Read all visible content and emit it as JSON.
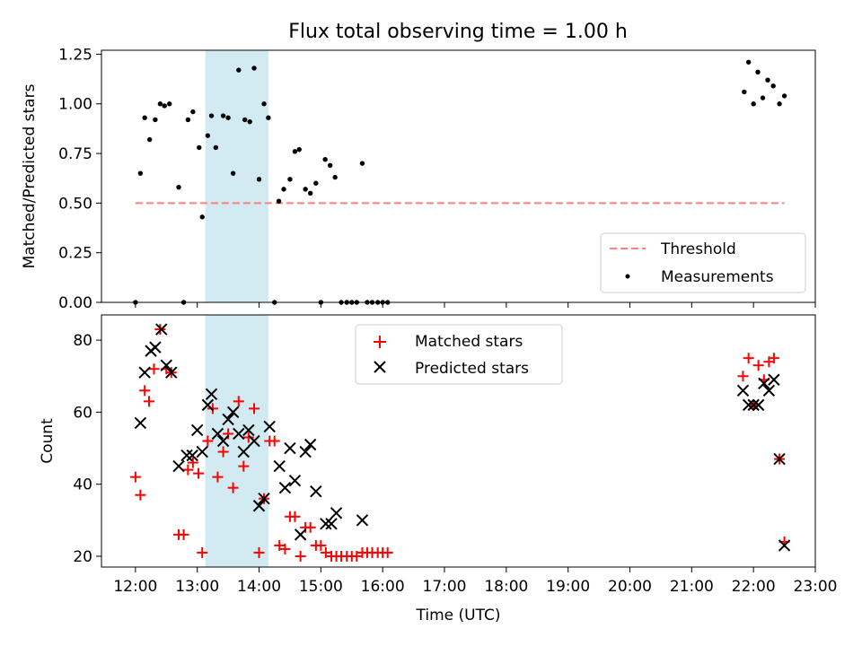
{
  "title": "Flux total observing time = 1.00 h",
  "chart_data": [
    {
      "type": "scatter",
      "ylabel": "Matched/Predicted stars",
      "xlim_hours": [
        11.45,
        23.0
      ],
      "ylim": [
        0,
        1.27
      ],
      "yticks": [
        0,
        0.25,
        0.5,
        0.75,
        1.0,
        1.25
      ],
      "ytick_labels": [
        "0.00",
        "0.25",
        "0.50",
        "0.75",
        "1.00",
        "1.25"
      ],
      "threshold": {
        "name": "Threshold",
        "y": 0.5,
        "x_range": [
          12.0,
          22.5
        ],
        "color": "#ff7f7f"
      },
      "highlight_band": {
        "x_range": [
          13.13,
          14.15
        ],
        "color": "#add8e6"
      },
      "legend": {
        "position": "lower right",
        "entries": [
          "Threshold",
          "Measurements"
        ]
      },
      "series": [
        {
          "name": "Measurements",
          "color": "#000000",
          "marker": "dot",
          "x": [
            12.0,
            12.08,
            12.15,
            12.23,
            12.32,
            12.4,
            12.47,
            12.55,
            12.7,
            12.78,
            12.85,
            12.93,
            13.03,
            13.08,
            13.17,
            13.23,
            13.3,
            13.42,
            13.5,
            13.58,
            13.67,
            13.77,
            13.85,
            13.92,
            14.0,
            14.08,
            14.15,
            14.25,
            14.32,
            14.4,
            14.5,
            14.58,
            14.65,
            14.75,
            14.83,
            14.92,
            15.0,
            15.07,
            15.15,
            15.23,
            15.33,
            15.42,
            15.5,
            15.58,
            15.67,
            15.75,
            15.83,
            15.92,
            16.0,
            16.08,
            21.85,
            21.92,
            22.0,
            22.07,
            22.15,
            22.23,
            22.32,
            22.42,
            22.5
          ],
          "y": [
            0.0,
            0.65,
            0.93,
            0.82,
            0.92,
            1.0,
            0.99,
            1.0,
            0.58,
            0.0,
            0.92,
            0.96,
            0.78,
            0.43,
            0.84,
            0.94,
            0.78,
            0.94,
            0.93,
            0.65,
            1.17,
            0.92,
            0.91,
            1.18,
            0.62,
            1.0,
            0.93,
            0.0,
            0.51,
            0.57,
            0.62,
            0.76,
            0.77,
            0.57,
            0.55,
            0.6,
            0.0,
            0.72,
            0.69,
            0.63,
            0.0,
            0.0,
            0.0,
            0.0,
            0.7,
            0.0,
            0.0,
            0.0,
            0.0,
            0.0,
            1.06,
            1.21,
            1.0,
            1.16,
            1.03,
            1.12,
            1.09,
            1.0,
            1.04
          ]
        }
      ]
    },
    {
      "type": "scatter",
      "xlabel": "Time (UTC)",
      "ylabel": "Count",
      "xlim_hours": [
        11.45,
        23.0
      ],
      "ylim": [
        17,
        87
      ],
      "yticks": [
        20,
        40,
        60,
        80
      ],
      "ytick_labels": [
        "20",
        "40",
        "60",
        "80"
      ],
      "xticks_hours": [
        12,
        13,
        14,
        15,
        16,
        17,
        18,
        19,
        20,
        21,
        22,
        23
      ],
      "xtick_labels": [
        "12:00",
        "13:00",
        "14:00",
        "15:00",
        "16:00",
        "17:00",
        "18:00",
        "19:00",
        "20:00",
        "21:00",
        "22:00",
        "23:00"
      ],
      "highlight_band": {
        "x_range": [
          13.13,
          14.15
        ],
        "color": "#add8e6"
      },
      "legend": {
        "position": "upper center",
        "entries": [
          "Matched stars",
          "Predicted stars"
        ]
      },
      "series": [
        {
          "name": "Matched stars",
          "color": "#ff0000",
          "marker": "plus",
          "x": [
            12.0,
            12.08,
            12.15,
            12.22,
            12.3,
            12.4,
            12.5,
            12.58,
            12.7,
            12.78,
            12.85,
            12.93,
            13.02,
            13.08,
            13.17,
            13.25,
            13.33,
            13.42,
            13.5,
            13.58,
            13.67,
            13.75,
            13.83,
            13.92,
            14.0,
            14.08,
            14.17,
            14.25,
            14.33,
            14.42,
            14.5,
            14.58,
            14.67,
            14.75,
            14.83,
            14.92,
            15.0,
            15.08,
            15.17,
            15.25,
            15.33,
            15.42,
            15.5,
            15.58,
            15.67,
            15.75,
            15.83,
            15.92,
            16.0,
            16.08,
            21.83,
            21.92,
            22.0,
            22.08,
            22.17,
            22.25,
            22.33,
            22.42,
            22.5
          ],
          "y": [
            42,
            37,
            66,
            63,
            72,
            83,
            72,
            71,
            26,
            26,
            44,
            46,
            43,
            21,
            52,
            61,
            42,
            49,
            54,
            39,
            63,
            45,
            53,
            61,
            21,
            36,
            52,
            52,
            23,
            22,
            31,
            31,
            20,
            28,
            28,
            23,
            23,
            21,
            20,
            20,
            20,
            20,
            20,
            20,
            21,
            21,
            21,
            21,
            21,
            21,
            70,
            75,
            62,
            73,
            69,
            74,
            75,
            47,
            24
          ]
        },
        {
          "name": "Predicted stars",
          "color": "#000000",
          "marker": "x",
          "x": [
            12.08,
            12.15,
            12.25,
            12.32,
            12.42,
            12.5,
            12.58,
            12.7,
            12.83,
            12.92,
            13.0,
            13.08,
            13.17,
            13.23,
            13.33,
            13.42,
            13.5,
            13.58,
            13.67,
            13.75,
            13.83,
            13.92,
            14.0,
            14.08,
            14.17,
            14.33,
            14.42,
            14.5,
            14.58,
            14.67,
            14.75,
            14.83,
            14.92,
            15.08,
            15.17,
            15.25,
            15.67,
            21.83,
            21.92,
            22.0,
            22.08,
            22.17,
            22.25,
            22.33,
            22.42,
            22.5
          ],
          "y": [
            57,
            71,
            77,
            78,
            83,
            73,
            71,
            45,
            48,
            48,
            55,
            49,
            62,
            65,
            54,
            52,
            58,
            60,
            54,
            49,
            55,
            52,
            34,
            36,
            56,
            45,
            39,
            50,
            41,
            26,
            49,
            51,
            38,
            29,
            29,
            32,
            30,
            66,
            62,
            62,
            62,
            68,
            66,
            69,
            47,
            23
          ]
        }
      ]
    }
  ]
}
